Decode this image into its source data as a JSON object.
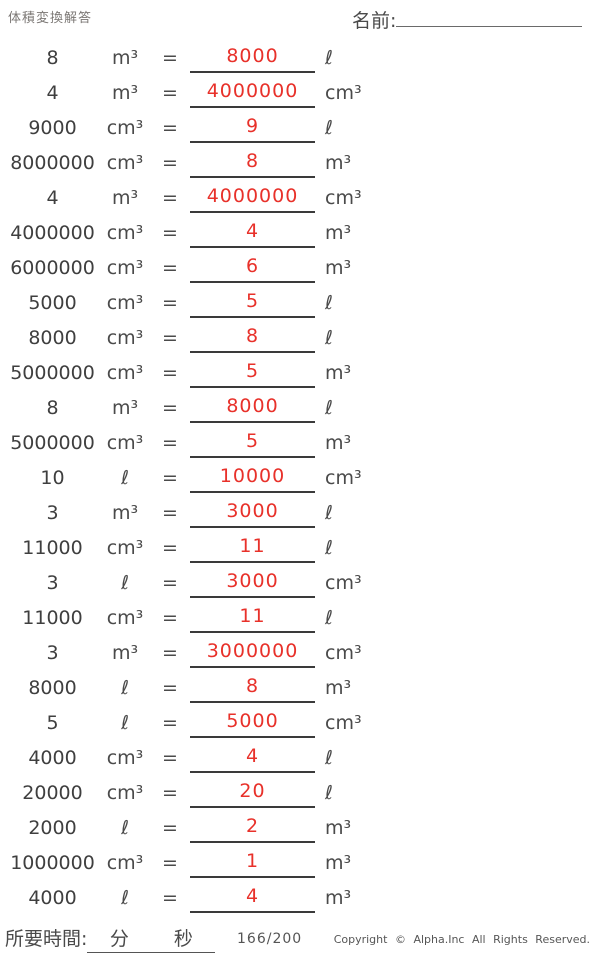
{
  "header": {
    "title": "体積変換解答",
    "name_label": "名前:"
  },
  "symbols": {
    "equals": "="
  },
  "rows": [
    {
      "value": "8",
      "unit_from": "m³",
      "answer": "8000",
      "unit_to": "ℓ"
    },
    {
      "value": "4",
      "unit_from": "m³",
      "answer": "4000000",
      "unit_to": "cm³"
    },
    {
      "value": "9000",
      "unit_from": "cm³",
      "answer": "9",
      "unit_to": "ℓ"
    },
    {
      "value": "8000000",
      "unit_from": "cm³",
      "answer": "8",
      "unit_to": "m³"
    },
    {
      "value": "4",
      "unit_from": "m³",
      "answer": "4000000",
      "unit_to": "cm³"
    },
    {
      "value": "4000000",
      "unit_from": "cm³",
      "answer": "4",
      "unit_to": "m³"
    },
    {
      "value": "6000000",
      "unit_from": "cm³",
      "answer": "6",
      "unit_to": "m³"
    },
    {
      "value": "5000",
      "unit_from": "cm³",
      "answer": "5",
      "unit_to": "ℓ"
    },
    {
      "value": "8000",
      "unit_from": "cm³",
      "answer": "8",
      "unit_to": "ℓ"
    },
    {
      "value": "5000000",
      "unit_from": "cm³",
      "answer": "5",
      "unit_to": "m³"
    },
    {
      "value": "8",
      "unit_from": "m³",
      "answer": "8000",
      "unit_to": "ℓ"
    },
    {
      "value": "5000000",
      "unit_from": "cm³",
      "answer": "5",
      "unit_to": "m³"
    },
    {
      "value": "10",
      "unit_from": "ℓ",
      "answer": "10000",
      "unit_to": "cm³"
    },
    {
      "value": "3",
      "unit_from": "m³",
      "answer": "3000",
      "unit_to": "ℓ"
    },
    {
      "value": "11000",
      "unit_from": "cm³",
      "answer": "11",
      "unit_to": "ℓ"
    },
    {
      "value": "3",
      "unit_from": "ℓ",
      "answer": "3000",
      "unit_to": "cm³"
    },
    {
      "value": "11000",
      "unit_from": "cm³",
      "answer": "11",
      "unit_to": "ℓ"
    },
    {
      "value": "3",
      "unit_from": "m³",
      "answer": "3000000",
      "unit_to": "cm³"
    },
    {
      "value": "8000",
      "unit_from": "ℓ",
      "answer": "8",
      "unit_to": "m³"
    },
    {
      "value": "5",
      "unit_from": "ℓ",
      "answer": "5000",
      "unit_to": "cm³"
    },
    {
      "value": "4000",
      "unit_from": "cm³",
      "answer": "4",
      "unit_to": "ℓ"
    },
    {
      "value": "20000",
      "unit_from": "cm³",
      "answer": "20",
      "unit_to": "ℓ"
    },
    {
      "value": "2000",
      "unit_from": "ℓ",
      "answer": "2",
      "unit_to": "m³"
    },
    {
      "value": "1000000",
      "unit_from": "cm³",
      "answer": "1",
      "unit_to": "m³"
    },
    {
      "value": "4000",
      "unit_from": "ℓ",
      "answer": "4",
      "unit_to": "m³"
    }
  ],
  "footer": {
    "time_label": "所要時間:",
    "minutes_label": "分",
    "seconds_label": "秒",
    "counter": "166/200",
    "copyright": "Copyright © Alpha.Inc All Rights Reserved."
  },
  "colors": {
    "answer_red": "#e8312a",
    "text": "#3f3f3f"
  }
}
